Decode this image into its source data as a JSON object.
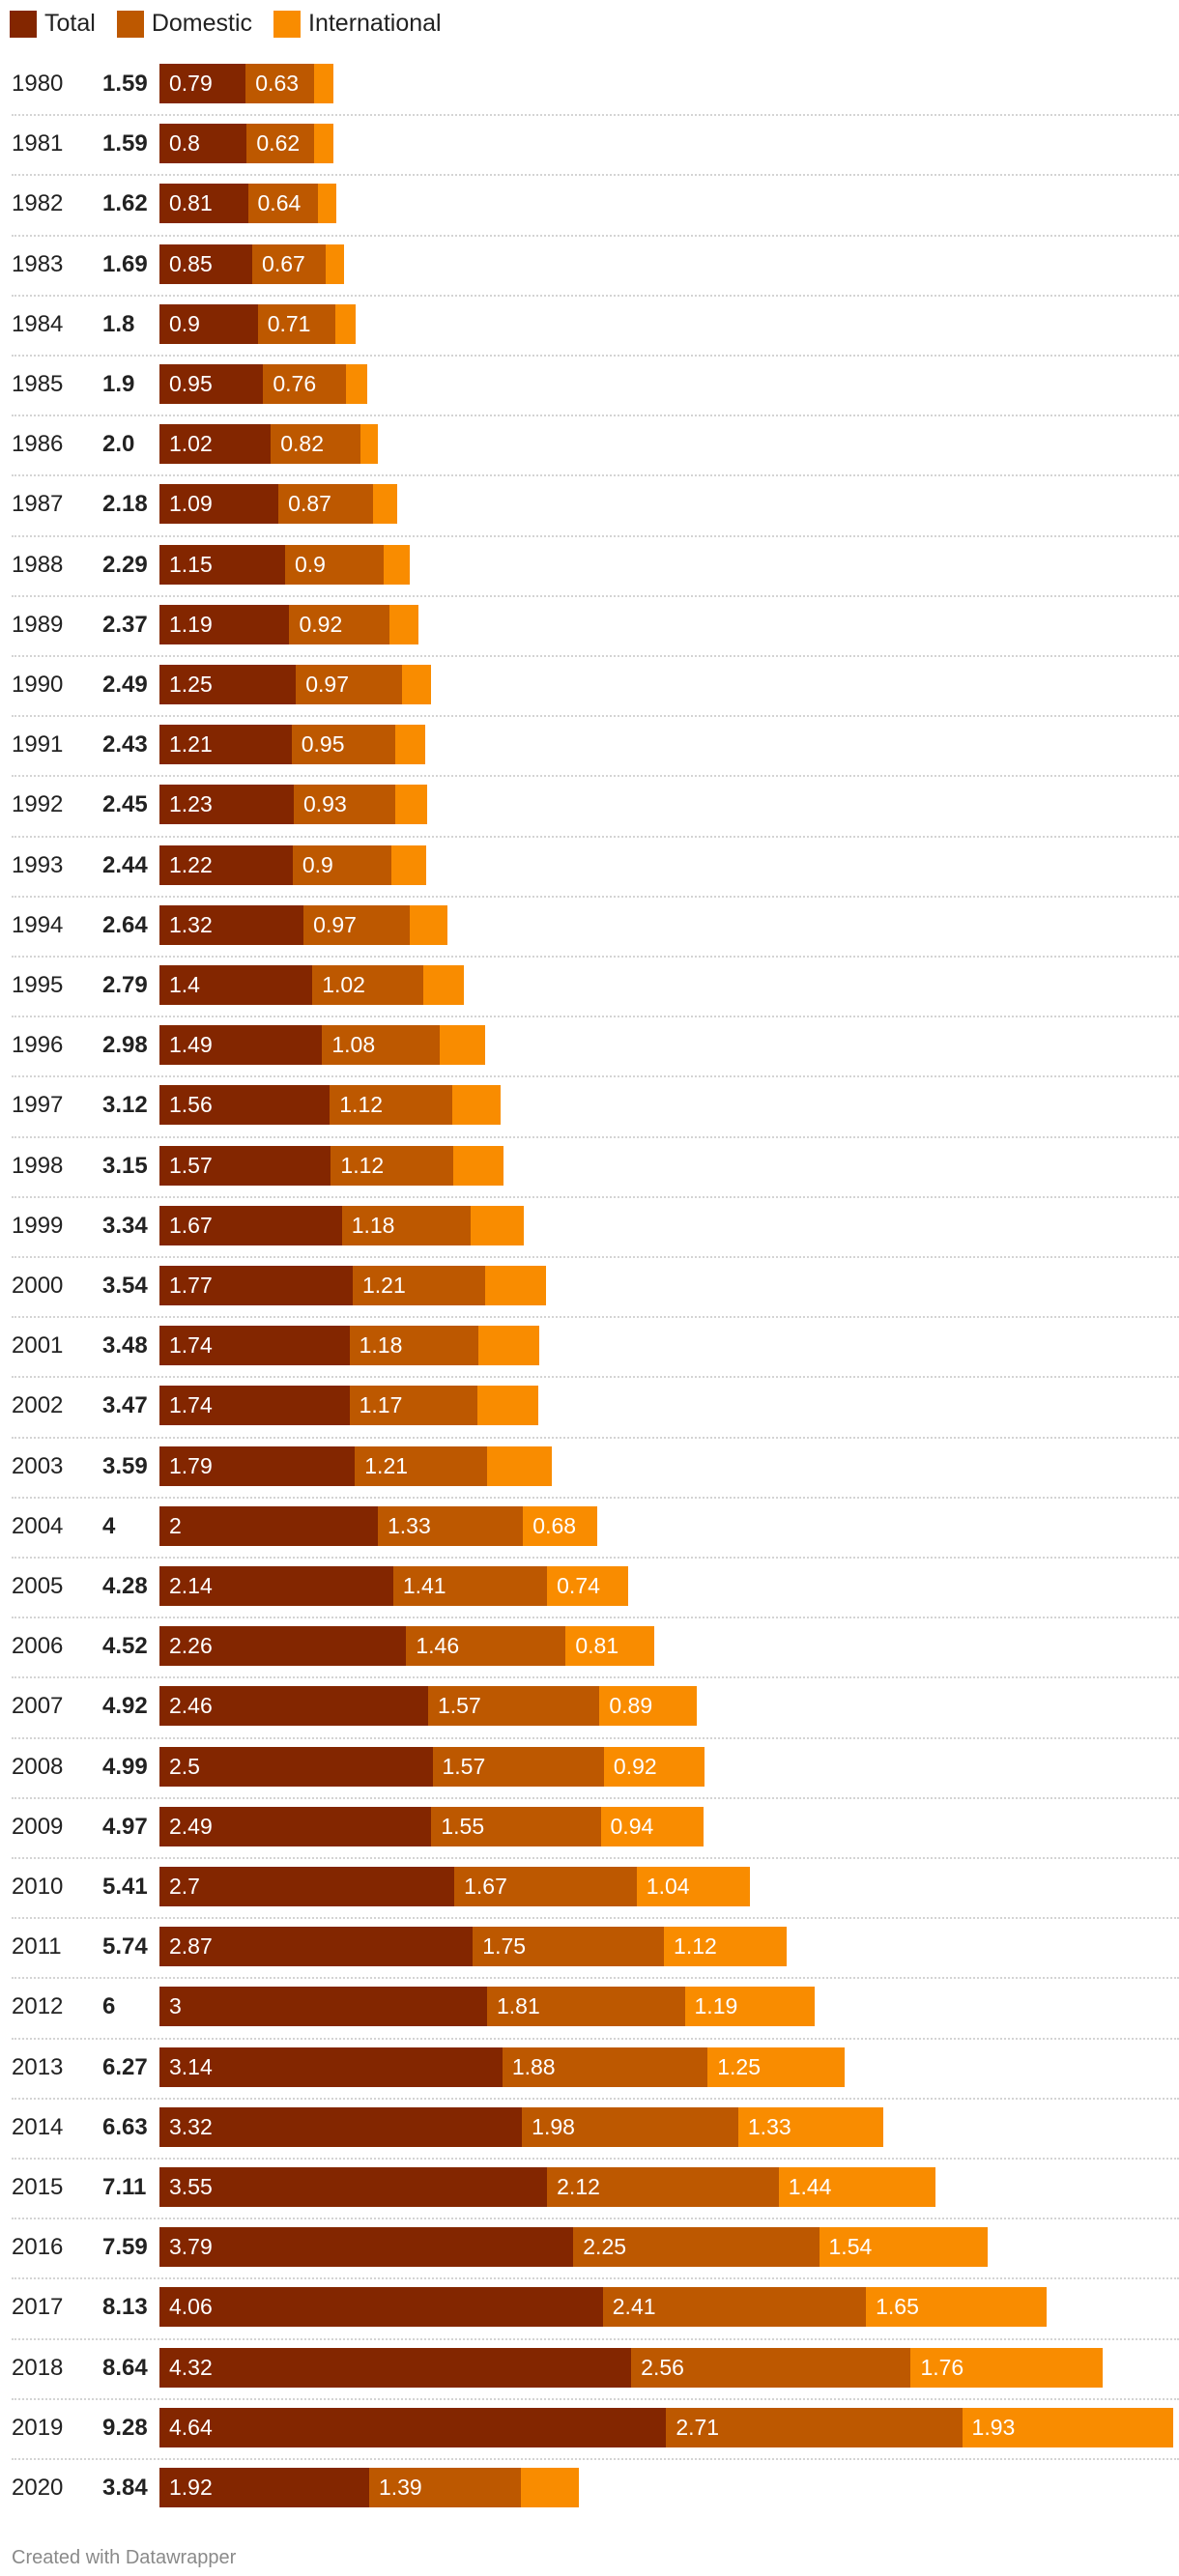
{
  "chart_data": {
    "type": "bar",
    "orientation": "horizontal",
    "stacked": true,
    "legend_position": "top-left",
    "grid": false,
    "colors": {
      "Total": "#832600",
      "Domestic": "#bd5800",
      "International": "#f98c00"
    },
    "legend": [
      "Total",
      "Domestic",
      "International"
    ],
    "categories": [
      "1980",
      "1981",
      "1982",
      "1983",
      "1984",
      "1985",
      "1986",
      "1987",
      "1988",
      "1989",
      "1990",
      "1991",
      "1992",
      "1993",
      "1994",
      "1995",
      "1996",
      "1997",
      "1998",
      "1999",
      "2000",
      "2001",
      "2002",
      "2003",
      "2004",
      "2005",
      "2006",
      "2007",
      "2008",
      "2009",
      "2010",
      "2011",
      "2012",
      "2013",
      "2014",
      "2015",
      "2016",
      "2017",
      "2018",
      "2019",
      "2020"
    ],
    "row_totals": [
      "1.59",
      "1.59",
      "1.62",
      "1.69",
      "1.8",
      "1.9",
      "2.0",
      "2.18",
      "2.29",
      "2.37",
      "2.49",
      "2.43",
      "2.45",
      "2.44",
      "2.64",
      "2.79",
      "2.98",
      "3.12",
      "3.15",
      "3.34",
      "3.54",
      "3.48",
      "3.47",
      "3.59",
      "4",
      "4.28",
      "4.52",
      "4.92",
      "4.99",
      "4.97",
      "5.41",
      "5.74",
      "6",
      "6.27",
      "6.63",
      "7.11",
      "7.59",
      "8.13",
      "8.64",
      "9.28",
      "3.84"
    ],
    "series": [
      {
        "name": "Total",
        "values": [
          "0.79",
          "0.8",
          "0.81",
          "0.85",
          "0.9",
          "0.95",
          "1.02",
          "1.09",
          "1.15",
          "1.19",
          "1.25",
          "1.21",
          "1.23",
          "1.22",
          "1.32",
          "1.4",
          "1.49",
          "1.56",
          "1.57",
          "1.67",
          "1.77",
          "1.74",
          "1.74",
          "1.79",
          "2",
          "2.14",
          "2.26",
          "2.46",
          "2.5",
          "2.49",
          "2.7",
          "2.87",
          "3",
          "3.14",
          "3.32",
          "3.55",
          "3.79",
          "4.06",
          "4.32",
          "4.64",
          "1.92"
        ]
      },
      {
        "name": "Domestic",
        "values": [
          "0.63",
          "0.62",
          "0.64",
          "0.67",
          "0.71",
          "0.76",
          "0.82",
          "0.87",
          "0.9",
          "0.92",
          "0.97",
          "0.95",
          "0.93",
          "0.9",
          "0.97",
          "1.02",
          "1.08",
          "1.12",
          "1.12",
          "1.18",
          "1.21",
          "1.18",
          "1.17",
          "1.21",
          "1.33",
          "1.41",
          "1.46",
          "1.57",
          "1.57",
          "1.55",
          "1.67",
          "1.75",
          "1.81",
          "1.88",
          "1.98",
          "2.12",
          "2.25",
          "2.41",
          "2.56",
          "2.71",
          "1.39"
        ]
      },
      {
        "name": "International",
        "values": [
          null,
          null,
          null,
          null,
          null,
          null,
          null,
          null,
          null,
          null,
          null,
          null,
          null,
          null,
          null,
          null,
          null,
          null,
          null,
          null,
          null,
          null,
          null,
          null,
          "0.68",
          "0.74",
          "0.81",
          "0.89",
          "0.92",
          "0.94",
          "1.04",
          "1.12",
          "1.19",
          "1.25",
          "1.33",
          "1.44",
          "1.54",
          "1.65",
          "1.76",
          "1.93",
          null
        ]
      }
    ]
  },
  "footer": "Created with Datawrapper"
}
